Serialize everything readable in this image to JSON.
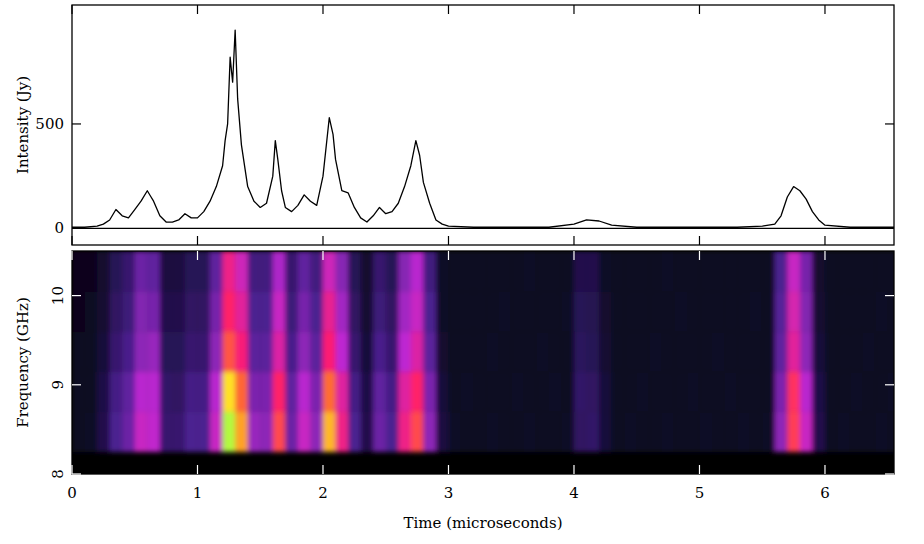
{
  "chart_data": [
    {
      "type": "line",
      "y_label": "Intensity (Jy)",
      "color": "#000000",
      "tick_labels": "y",
      "xlim": [
        0,
        6.55
      ],
      "xticks": [
        0,
        1,
        2,
        3,
        4,
        5,
        6
      ],
      "ylim": [
        -80,
        1070
      ],
      "yticks": [
        0,
        500
      ],
      "x": [
        0,
        0.1,
        0.2,
        0.25,
        0.3,
        0.35,
        0.4,
        0.45,
        0.5,
        0.55,
        0.6,
        0.63,
        0.65,
        0.7,
        0.75,
        0.8,
        0.85,
        0.9,
        0.95,
        1.0,
        1.05,
        1.1,
        1.15,
        1.2,
        1.22,
        1.24,
        1.26,
        1.28,
        1.3,
        1.32,
        1.35,
        1.4,
        1.45,
        1.5,
        1.55,
        1.6,
        1.62,
        1.64,
        1.67,
        1.7,
        1.75,
        1.8,
        1.85,
        1.9,
        1.95,
        2.0,
        2.05,
        2.08,
        2.1,
        2.15,
        2.2,
        2.25,
        2.3,
        2.35,
        2.4,
        2.45,
        2.5,
        2.55,
        2.6,
        2.65,
        2.7,
        2.74,
        2.77,
        2.8,
        2.85,
        2.9,
        2.95,
        3.0,
        3.2,
        3.5,
        3.8,
        4.0,
        4.1,
        4.2,
        4.3,
        4.5,
        4.8,
        5.0,
        5.3,
        5.5,
        5.6,
        5.65,
        5.7,
        5.75,
        5.8,
        5.85,
        5.9,
        5.95,
        6.0,
        6.2,
        6.55
      ],
      "values": [
        5,
        5,
        10,
        20,
        40,
        90,
        60,
        50,
        90,
        130,
        180,
        150,
        130,
        60,
        30,
        30,
        40,
        70,
        50,
        50,
        80,
        130,
        200,
        300,
        420,
        500,
        820,
        700,
        950,
        620,
        400,
        200,
        130,
        100,
        120,
        250,
        420,
        330,
        180,
        100,
        80,
        110,
        160,
        130,
        110,
        250,
        530,
        450,
        330,
        180,
        170,
        100,
        50,
        30,
        60,
        100,
        70,
        80,
        120,
        200,
        300,
        420,
        350,
        220,
        120,
        40,
        20,
        10,
        5,
        5,
        5,
        20,
        40,
        35,
        15,
        5,
        5,
        5,
        5,
        10,
        20,
        60,
        150,
        200,
        180,
        140,
        80,
        40,
        15,
        5,
        5
      ]
    },
    {
      "type": "heatmap",
      "x_label": "Time (microseconds)",
      "y_label": "Frequency (GHz)",
      "xlim": [
        0,
        6.55
      ],
      "xticks": [
        0,
        1,
        2,
        3,
        4,
        5,
        6
      ],
      "ylim": [
        8,
        10.5
      ],
      "yticks": [
        8,
        9,
        10
      ],
      "zlim": [
        0,
        10
      ],
      "xbins": [
        0,
        0.1,
        0.2,
        0.3,
        0.4,
        0.5,
        0.6,
        0.7,
        0.8,
        0.9,
        1.0,
        1.1,
        1.2,
        1.3,
        1.4,
        1.5,
        1.6,
        1.7,
        1.8,
        1.9,
        2.0,
        2.1,
        2.2,
        2.3,
        2.4,
        2.5,
        2.6,
        2.7,
        2.8,
        2.9,
        3.0,
        3.1,
        3.2,
        3.3,
        3.4,
        3.5,
        3.6,
        3.7,
        3.8,
        3.9,
        4.0,
        4.1,
        4.2,
        4.3,
        4.4,
        4.5,
        4.6,
        4.7,
        4.8,
        4.9,
        5.0,
        5.1,
        5.2,
        5.3,
        5.4,
        5.5,
        5.6,
        5.7,
        5.8,
        5.9,
        6.0,
        6.1,
        6.2,
        6.3,
        6.4,
        6.5,
        6.6
      ],
      "ybins": [
        8.25,
        8.7,
        9.15,
        9.6,
        10.05,
        10.5
      ],
      "cells": [
        [
          0.5,
          0.6,
          1.2,
          2.4,
          3,
          4.8,
          4.6,
          1.8,
          1.8,
          2.4,
          2.4,
          4.8,
          9.8,
          8.4,
          3.8,
          3.6,
          7.2,
          3,
          4.8,
          3.6,
          8.6,
          6,
          2.4,
          1.2,
          3,
          2.4,
          6,
          7.2,
          3.6,
          1,
          0.6,
          0.5,
          0.5,
          0.6,
          0.5,
          0.5,
          0.6,
          0.5,
          0.5,
          0.6,
          1.6,
          1.7,
          0.9,
          0.5,
          0.6,
          0.5,
          0.5,
          0.6,
          0.5,
          0.5,
          0.6,
          0.5,
          0.5,
          0.6,
          0.5,
          0.6,
          3.6,
          7,
          4.8,
          1.2,
          0.5,
          0.6,
          0.5,
          0.5,
          0.6,
          0.5
        ],
        [
          0.5,
          0.5,
          1.1,
          2.2,
          2.8,
          4.4,
          4.4,
          1.7,
          1.6,
          2.2,
          2.2,
          4.4,
          9,
          7.7,
          3.3,
          3.3,
          6.6,
          2.8,
          4.4,
          3.3,
          7.8,
          5.5,
          2.2,
          1.1,
          2.8,
          2.2,
          5.5,
          6.6,
          3.3,
          0.9,
          0.5,
          0.6,
          0.5,
          0.5,
          0.5,
          0.6,
          0.5,
          0.5,
          0.6,
          0.5,
          1.7,
          1.6,
          0.9,
          0.5,
          0.5,
          0.6,
          0.5,
          0.5,
          0.5,
          0.6,
          0.5,
          0.5,
          0.6,
          0.5,
          0.5,
          0.5,
          3.3,
          6.8,
          4.4,
          1.1,
          0.5,
          0.5,
          0.6,
          0.5,
          0.5,
          0.6
        ],
        [
          0.5,
          0.5,
          0.9,
          1.8,
          2.3,
          3.6,
          3.8,
          1.4,
          1.4,
          1.8,
          1.8,
          3.6,
          7.4,
          6.3,
          2.7,
          2.7,
          5.4,
          2.3,
          3.6,
          2.7,
          6.4,
          4.5,
          1.8,
          0.9,
          2.3,
          1.8,
          4.5,
          5.4,
          2.7,
          0.7,
          0.5,
          0.5,
          0.5,
          0.6,
          0.5,
          0.5,
          0.5,
          0.6,
          0.5,
          0.5,
          1.5,
          1.4,
          0.8,
          0.5,
          0.5,
          0.5,
          0.6,
          0.5,
          0.5,
          0.5,
          0.5,
          0.6,
          0.5,
          0.5,
          0.5,
          0.5,
          2.8,
          5.6,
          3.6,
          0.9,
          0.5,
          0.5,
          0.5,
          0.6,
          0.5,
          0.5
        ],
        [
          0.4,
          0.5,
          0.8,
          1.6,
          2,
          3.4,
          3.2,
          1.2,
          1.2,
          1.6,
          1.6,
          3.2,
          6.6,
          5.6,
          2.4,
          2.4,
          4.8,
          2,
          3.2,
          2.4,
          5.8,
          4,
          1.6,
          0.8,
          2,
          1.6,
          4,
          4.8,
          2.4,
          0.6,
          0.5,
          0.5,
          0.5,
          0.5,
          0.6,
          0.5,
          0.5,
          0.5,
          0.5,
          0.6,
          1.4,
          1.3,
          0.7,
          0.5,
          0.5,
          0.5,
          0.5,
          0.5,
          0.6,
          0.5,
          0.5,
          0.5,
          0.5,
          0.5,
          0.6,
          0.5,
          2.6,
          5.2,
          3.4,
          0.8,
          0.5,
          0.5,
          0.5,
          0.5,
          0.6,
          0.5
        ],
        [
          0.4,
          0.4,
          0.7,
          1.4,
          1.8,
          3,
          2.8,
          1,
          1,
          1.4,
          1.4,
          2.8,
          6,
          5,
          2.1,
          2.1,
          4.2,
          1.8,
          2.8,
          2.1,
          5,
          3.5,
          1.4,
          0.7,
          1.8,
          1.4,
          3.5,
          4.4,
          2.1,
          0.6,
          0.5,
          0.5,
          0.5,
          0.5,
          0.5,
          0.5,
          0.6,
          0.5,
          0.5,
          0.5,
          1.2,
          1.2,
          0.6,
          0.5,
          0.5,
          0.5,
          0.5,
          0.6,
          0.5,
          0.5,
          0.5,
          0.5,
          0.5,
          0.5,
          0.5,
          0.5,
          2.4,
          4.8,
          3.2,
          0.7,
          0.5,
          0.5,
          0.5,
          0.5,
          0.5,
          0.5
        ]
      ]
    }
  ]
}
